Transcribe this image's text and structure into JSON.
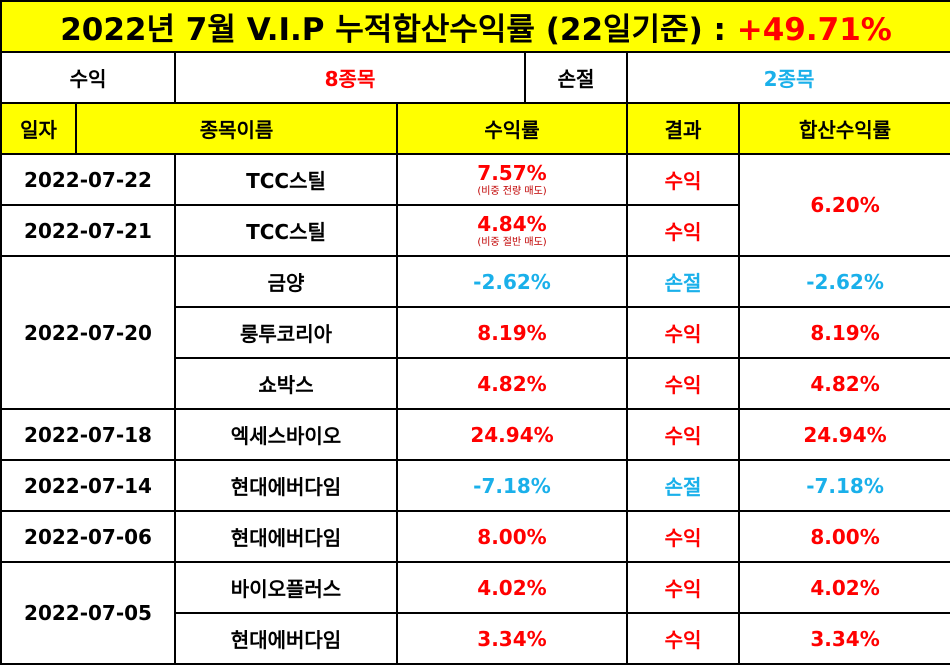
{
  "title": {
    "text": "2022년 7월 V.I.P 누적합산수익률 (22일기준) : ",
    "total_return": "+49.71%"
  },
  "summary": {
    "profit_label": "수익",
    "profit_count": "8종목",
    "loss_label": "손절",
    "loss_count": "2종목"
  },
  "headers": {
    "date": "일자",
    "name": "종목이름",
    "rate": "수익률",
    "result": "결과",
    "combined": "합산수익률"
  },
  "rows": [
    {
      "date": "2022-07-22",
      "name": "TCC스틸",
      "rate": "7.57%",
      "note": "(비중 전량 매도)",
      "result": "수익",
      "combined": "6.20%"
    },
    {
      "date": "2022-07-21",
      "name": "TCC스틸",
      "rate": "4.84%",
      "note": "(비중 절반 매도)",
      "result": "수익"
    },
    {
      "date": "2022-07-20",
      "name": "금양",
      "rate": "-2.62%",
      "result": "손절",
      "combined": "-2.62%"
    },
    {
      "name": "룽투코리아",
      "rate": "8.19%",
      "result": "수익",
      "combined": "8.19%"
    },
    {
      "name": "쇼박스",
      "rate": "4.82%",
      "result": "수익",
      "combined": "4.82%"
    },
    {
      "date": "2022-07-18",
      "name": "엑세스바이오",
      "rate": "24.94%",
      "result": "수익",
      "combined": "24.94%"
    },
    {
      "date": "2022-07-14",
      "name": "현대에버다임",
      "rate": "-7.18%",
      "result": "손절",
      "combined": "-7.18%"
    },
    {
      "date": "2022-07-06",
      "name": "현대에버다임",
      "rate": "8.00%",
      "result": "수익",
      "combined": "8.00%"
    },
    {
      "date": "2022-07-05",
      "name": "바이오플러스",
      "rate": "4.02%",
      "result": "수익",
      "combined": "4.02%"
    },
    {
      "name": "현대에버다임",
      "rate": "3.34%",
      "result": "수익",
      "combined": "3.34%"
    }
  ],
  "colors": {
    "header_bg": "#ffff00",
    "profit": "#ff0000",
    "loss": "#1ab0ea",
    "border": "#000000"
  }
}
